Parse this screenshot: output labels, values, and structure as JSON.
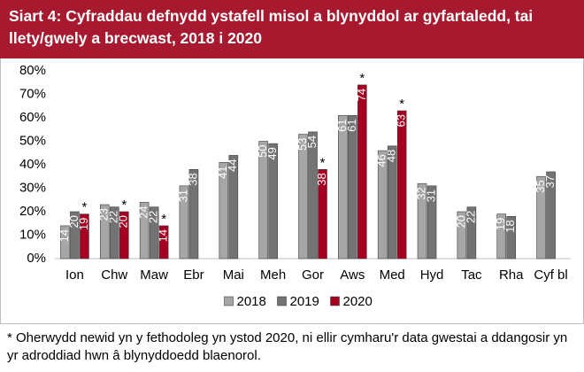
{
  "chart_data": {
    "type": "bar",
    "title": "Siart 4: Cyfraddau defnydd ystafell misol a blynyddol ar gyfartaledd, tai llety/gwely a brecwast, 2018 i 2020",
    "categories": [
      "Ion",
      "Chw",
      "Maw",
      "Ebr",
      "Mai",
      "Meh",
      "Gor",
      "Aws",
      "Med",
      "Hyd",
      "Tac",
      "Rha",
      "Cyf bl"
    ],
    "series": [
      {
        "name": "2018",
        "color": "#a6a6a6",
        "values": [
          14,
          23,
          24,
          31,
          41,
          50,
          53,
          61,
          46,
          32,
          20,
          19,
          35
        ]
      },
      {
        "name": "2019",
        "color": "#737373",
        "values": [
          20,
          22,
          22,
          38,
          44,
          49,
          54,
          61,
          48,
          31,
          22,
          18,
          37
        ]
      },
      {
        "name": "2020",
        "color": "#a50021",
        "values": [
          19,
          20,
          14,
          null,
          null,
          null,
          38,
          74,
          63,
          null,
          null,
          null,
          null
        ],
        "notes": [
          "*",
          "*",
          "*",
          null,
          null,
          null,
          "*",
          "*",
          "*",
          null,
          null,
          null,
          null
        ]
      }
    ],
    "ylim": [
      0,
      80
    ],
    "yticks": [
      {
        "value": 0,
        "label": "0%"
      },
      {
        "value": 10,
        "label": "10%"
      },
      {
        "value": 20,
        "label": "20%"
      },
      {
        "value": 30,
        "label": "30%"
      },
      {
        "value": 40,
        "label": "40%"
      },
      {
        "value": 50,
        "label": "50%"
      },
      {
        "value": 60,
        "label": "60%"
      },
      {
        "value": 70,
        "label": "70%"
      },
      {
        "value": 80,
        "label": "80%"
      }
    ],
    "grid": false,
    "footnote": "* Oherwydd newid yn y fethodoleg yn ystod 2020, ni ellir cymharu'r data gwestai a ddangosir yn yr adroddiad hwn â blynyddoedd blaenorol."
  }
}
